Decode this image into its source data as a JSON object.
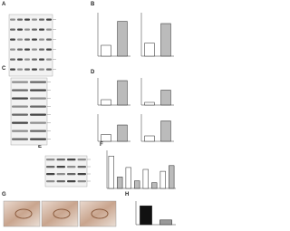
{
  "panels": [
    {
      "label": "A",
      "charts": []
    },
    {
      "label": "B",
      "charts": [
        {
          "values": [
            0.25,
            0.8
          ]
        },
        {
          "values": [
            0.3,
            0.75
          ]
        }
      ]
    },
    {
      "label": "C",
      "charts": []
    },
    {
      "label": "D",
      "charts": [
        {
          "values": [
            0.2,
            0.9
          ]
        },
        {
          "values": [
            0.1,
            0.55
          ]
        },
        {
          "values": [
            0.25,
            0.6
          ]
        },
        {
          "values": [
            0.2,
            0.75
          ]
        }
      ]
    },
    {
      "label": "E",
      "charts": []
    },
    {
      "label": "F",
      "charts": [
        {
          "values": [
            0.85,
            0.3,
            0.55,
            0.2,
            0.5,
            0.15,
            0.45,
            0.6
          ]
        }
      ]
    },
    {
      "label": "G",
      "charts": []
    },
    {
      "label": "H",
      "charts": [
        {
          "values": [
            0.8,
            0.2
          ]
        }
      ]
    }
  ]
}
